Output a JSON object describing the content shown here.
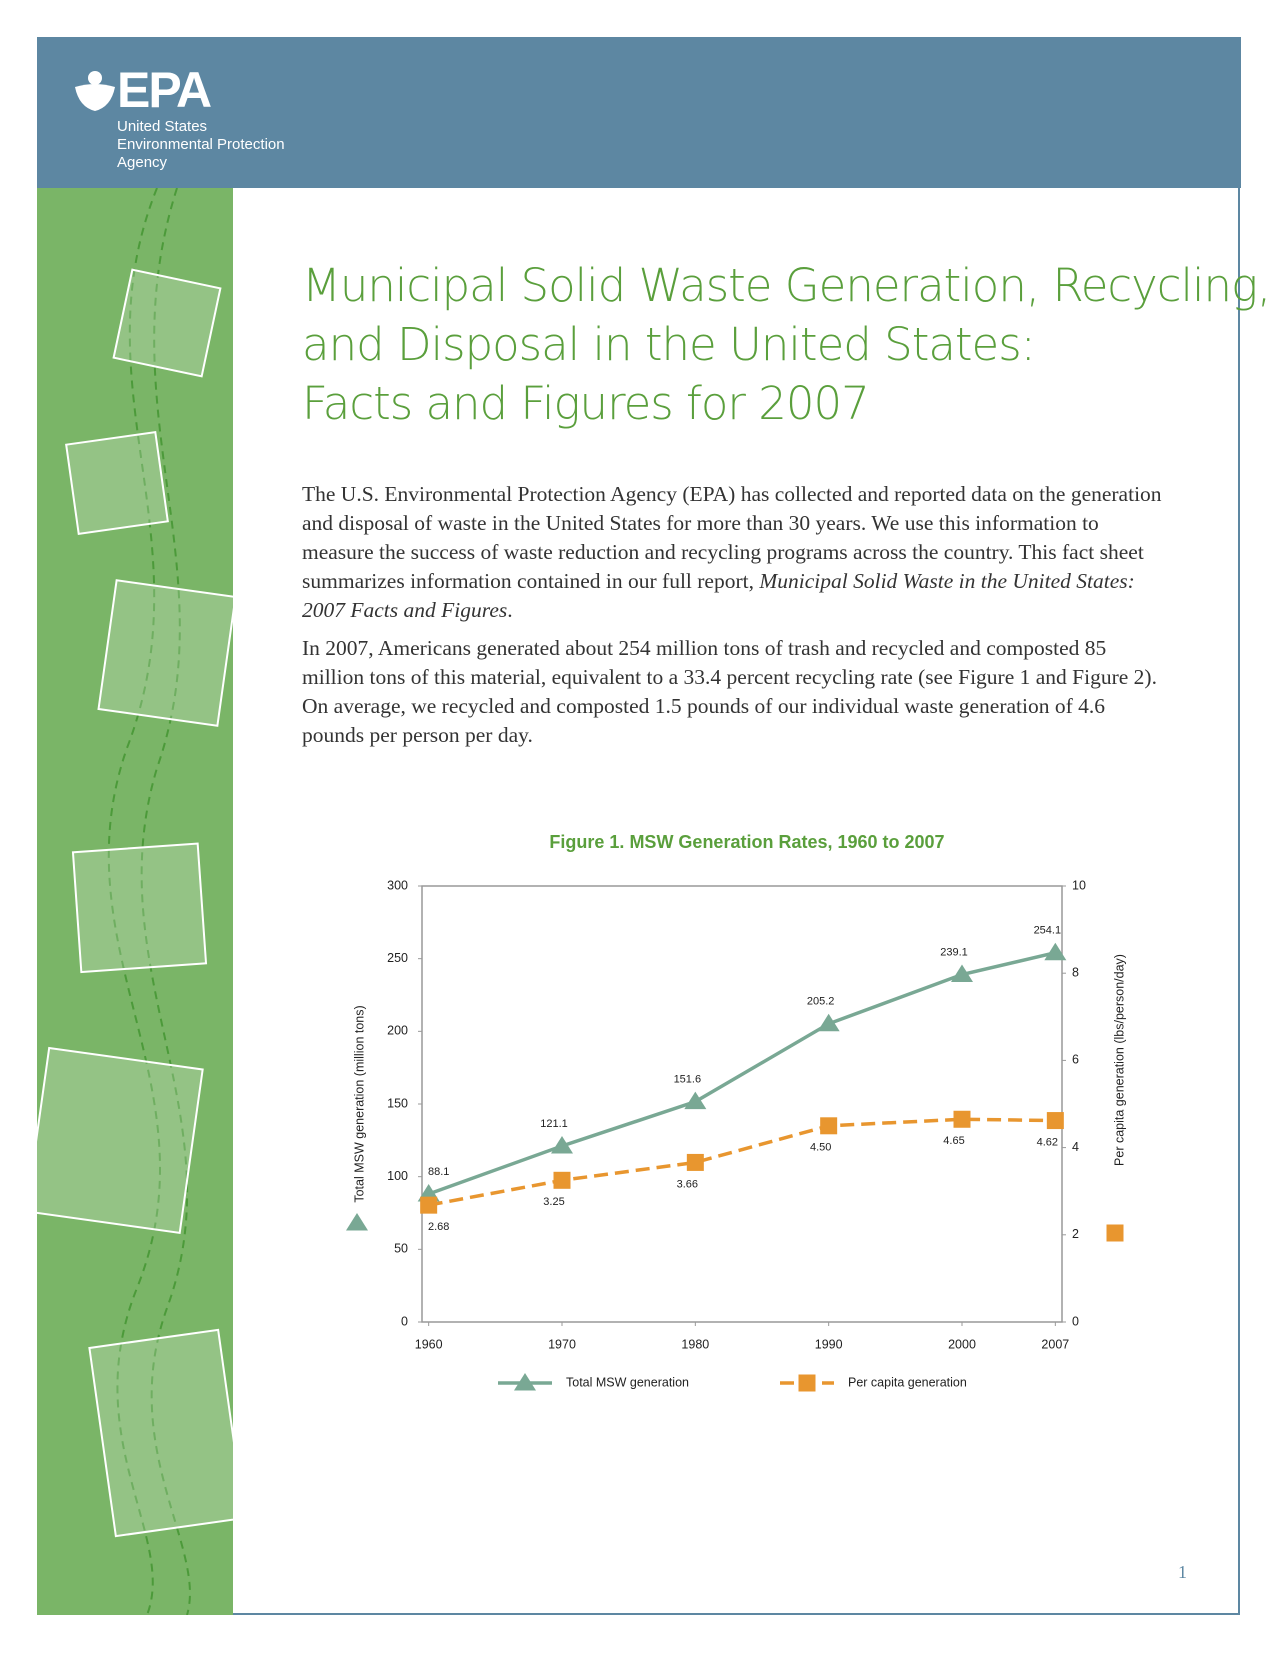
{
  "header": {
    "logo": "EPA",
    "agency": [
      "United States",
      "Environmental Protection",
      "Agency"
    ]
  },
  "title": [
    "Municipal Solid Waste Generation, Recycling,",
    "and Disposal in the United States:",
    "Facts and Figures for 2007"
  ],
  "body": {
    "paragraph_1": {
      "text": "The U.S. Environmental Protection Agency (EPA) has collected and reported data on the generation and disposal of waste in the United States for more than 30 years. We use this information to measure the success of waste reduction and recycling programs across the country. This fact sheet summarizes information contained in our full report, ",
      "report_title": "Municipal Solid Waste in the United States: 2007 Facts and Figures",
      "end": "."
    },
    "paragraph_2": "In 2007, Americans generated about 254 million tons of trash and recycled and composted 85 million tons of this material, equivalent to a 33.4 percent recycling rate (see Figure 1 and Figure 2). On average, we recycled and composted 1.5 pounds of our individual waste generation of 4.6 pounds per person per day."
  },
  "chart_data": {
    "type": "line",
    "title": "Figure 1. MSW Generation Rates, 1960 to 2007",
    "y_label": "Total MSW generation (million tons)",
    "y2_label": "Per capita generation (lbs/person/day)",
    "x": [
      1960,
      1970,
      1980,
      1990,
      2000,
      2007
    ],
    "xlim": [
      1959.5,
      2007.5
    ],
    "xticks": [
      1960,
      1970,
      1980,
      1990,
      2000,
      2007
    ],
    "ylim": [
      0,
      300
    ],
    "yticks": [
      0,
      50,
      100,
      150,
      200,
      250,
      300
    ],
    "y2lim": [
      0,
      10
    ],
    "y2ticks": [
      0,
      2,
      4,
      6,
      8,
      10
    ],
    "grid": false,
    "series": [
      {
        "name": "Total MSW generation",
        "color": "#79a894",
        "marker": "triangle",
        "values": [
          88.1,
          121.1,
          151.6,
          205.2,
          239.1,
          254.1
        ],
        "value_labels": [
          "88.1",
          "121.1",
          "151.6",
          "205.2",
          "239.1",
          "254.1"
        ]
      },
      {
        "name": "Per capita generation",
        "color": "#e8962f",
        "marker": "square",
        "axis": "y2",
        "dashed": true,
        "values": [
          2.68,
          3.25,
          3.66,
          4.5,
          4.65,
          4.62
        ],
        "value_labels": [
          "2.68",
          "3.25",
          "3.66",
          "4.50",
          "4.65",
          "4.62"
        ]
      }
    ]
  },
  "page_number": "1"
}
